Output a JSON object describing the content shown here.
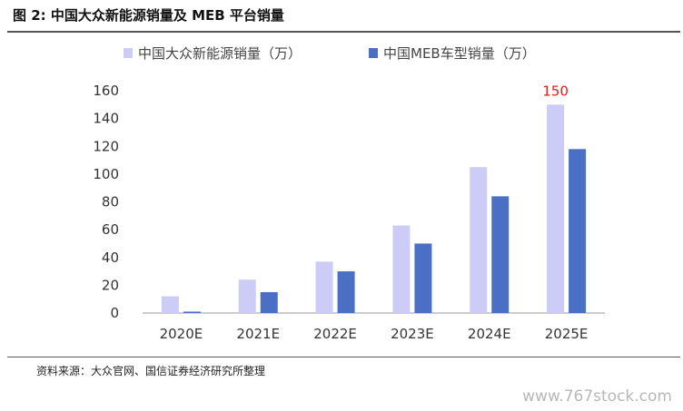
{
  "figure": {
    "title": "图 2:  中国大众新能源销量及 MEB 平台销量",
    "source": "资料来源：大众官网、国信证券经济研究所整理",
    "watermark": "www.767stock.com"
  },
  "colors": {
    "series_1": "#ccccf6",
    "series_2": "#4a6fc4",
    "annotation": "#e02020",
    "axis": "#999999"
  },
  "chart_data": {
    "type": "bar",
    "title": "",
    "xlabel": "",
    "ylabel": "",
    "categories": [
      "2020E",
      "2021E",
      "2022E",
      "2023E",
      "2024E",
      "2025E"
    ],
    "series": [
      {
        "name": "中国大众新能源销量（万）",
        "values": [
          12,
          24,
          37,
          63,
          105,
          150
        ]
      },
      {
        "name": "中国MEB车型销量（万）",
        "values": [
          1,
          15,
          30,
          50,
          84,
          118
        ]
      }
    ],
    "ylim": [
      0,
      160
    ],
    "yticks": [
      0,
      20,
      40,
      60,
      80,
      100,
      120,
      140,
      160
    ],
    "grid": false,
    "legend": "top",
    "annotations": [
      {
        "category": "2025E",
        "series": 0,
        "text": "150"
      }
    ]
  }
}
